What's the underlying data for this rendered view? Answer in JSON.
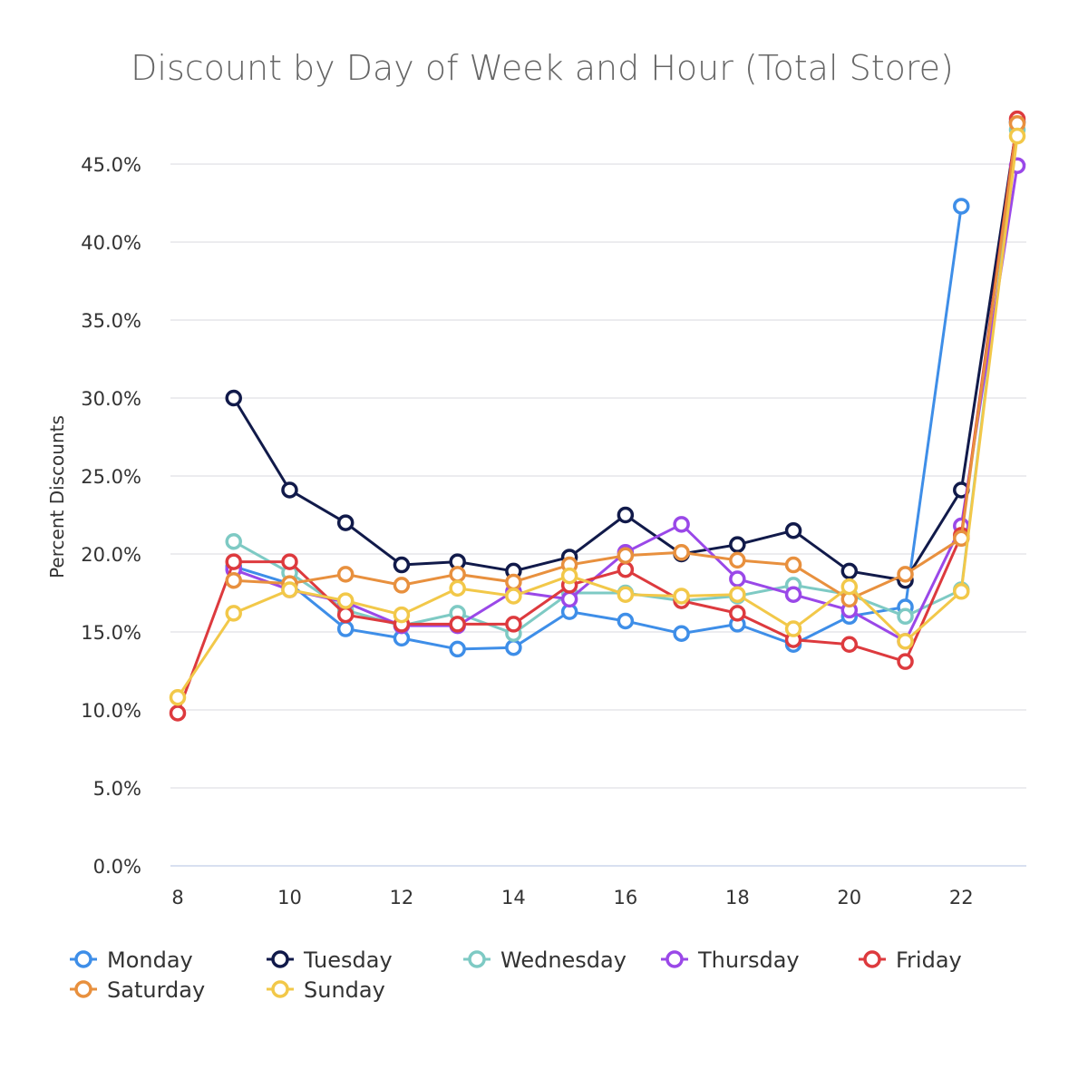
{
  "chart_data": {
    "type": "line",
    "title": "Discount by Day of Week and Hour (Total Store)",
    "ylabel": "Percent Discounts",
    "xlabel": "",
    "xlim": [
      8,
      23
    ],
    "ylim": [
      0,
      47.5
    ],
    "x_ticks": [
      8,
      10,
      12,
      14,
      16,
      18,
      20,
      22
    ],
    "y_ticks": [
      0,
      5,
      10,
      15,
      20,
      25,
      30,
      35,
      40,
      45
    ],
    "y_tick_labels": [
      "0.0%",
      "5.0%",
      "10.0%",
      "15.0%",
      "20.0%",
      "25.0%",
      "30.0%",
      "35.0%",
      "40.0%",
      "45.0%"
    ],
    "grid": true,
    "legend": "bottom",
    "series": [
      {
        "name": "Monday",
        "color": "#3e8ee8",
        "x": [
          9,
          10,
          11,
          12,
          13,
          14,
          15,
          16,
          17,
          18,
          19,
          20,
          21,
          22
        ],
        "y": [
          19.2,
          18.1,
          15.2,
          14.6,
          13.9,
          14.0,
          16.3,
          15.7,
          14.9,
          15.5,
          14.2,
          16.0,
          16.6,
          42.3
        ]
      },
      {
        "name": "Tuesday",
        "color": "#111a4a",
        "x": [
          9,
          10,
          11,
          12,
          13,
          14,
          15,
          16,
          17,
          18,
          19,
          20,
          21,
          22,
          23
        ],
        "y": [
          30.0,
          24.1,
          22.0,
          19.3,
          19.5,
          18.9,
          19.8,
          22.5,
          20.0,
          20.6,
          21.5,
          18.9,
          18.3,
          24.1,
          47.7
        ]
      },
      {
        "name": "Wednesday",
        "color": "#7ecac4",
        "x": [
          9,
          10,
          11,
          12,
          13,
          14,
          15,
          16,
          17,
          18,
          19,
          20,
          21,
          22,
          23
        ],
        "y": [
          20.8,
          18.8,
          16.4,
          15.4,
          16.2,
          14.9,
          17.5,
          17.5,
          17.0,
          17.3,
          18.0,
          17.4,
          16.0,
          17.7,
          47.2
        ]
      },
      {
        "name": "Thursday",
        "color": "#9a48e8",
        "x": [
          9,
          10,
          11,
          12,
          13,
          14,
          15,
          16,
          17,
          18,
          19,
          20,
          21,
          22,
          23
        ],
        "y": [
          19.0,
          17.7,
          16.9,
          15.4,
          15.4,
          17.6,
          17.1,
          20.1,
          21.9,
          18.4,
          17.4,
          16.4,
          14.4,
          21.8,
          44.9
        ]
      },
      {
        "name": "Friday",
        "color": "#dd3a3e",
        "x": [
          8,
          9,
          10,
          11,
          12,
          13,
          14,
          15,
          16,
          17,
          18,
          19,
          20,
          21,
          22,
          23
        ],
        "y": [
          9.8,
          19.5,
          19.5,
          16.1,
          15.5,
          15.5,
          15.5,
          18.0,
          19.0,
          17.0,
          16.2,
          14.5,
          14.2,
          13.1,
          21.2,
          47.9
        ]
      },
      {
        "name": "Saturday",
        "color": "#e8903e",
        "x": [
          9,
          10,
          11,
          12,
          13,
          14,
          15,
          16,
          17,
          18,
          19,
          20,
          21,
          22,
          23
        ],
        "y": [
          18.3,
          18.1,
          18.7,
          18.0,
          18.7,
          18.2,
          19.3,
          19.9,
          20.1,
          19.6,
          19.3,
          17.1,
          18.7,
          21.0,
          47.6
        ]
      },
      {
        "name": "Sunday",
        "color": "#f2c849",
        "x": [
          8,
          9,
          10,
          11,
          12,
          13,
          14,
          15,
          16,
          17,
          18,
          19,
          20,
          21,
          22,
          23
        ],
        "y": [
          10.8,
          16.2,
          17.7,
          17.0,
          16.1,
          17.8,
          17.3,
          18.6,
          17.4,
          17.3,
          17.4,
          15.2,
          17.9,
          14.4,
          17.6,
          46.8
        ]
      }
    ]
  }
}
